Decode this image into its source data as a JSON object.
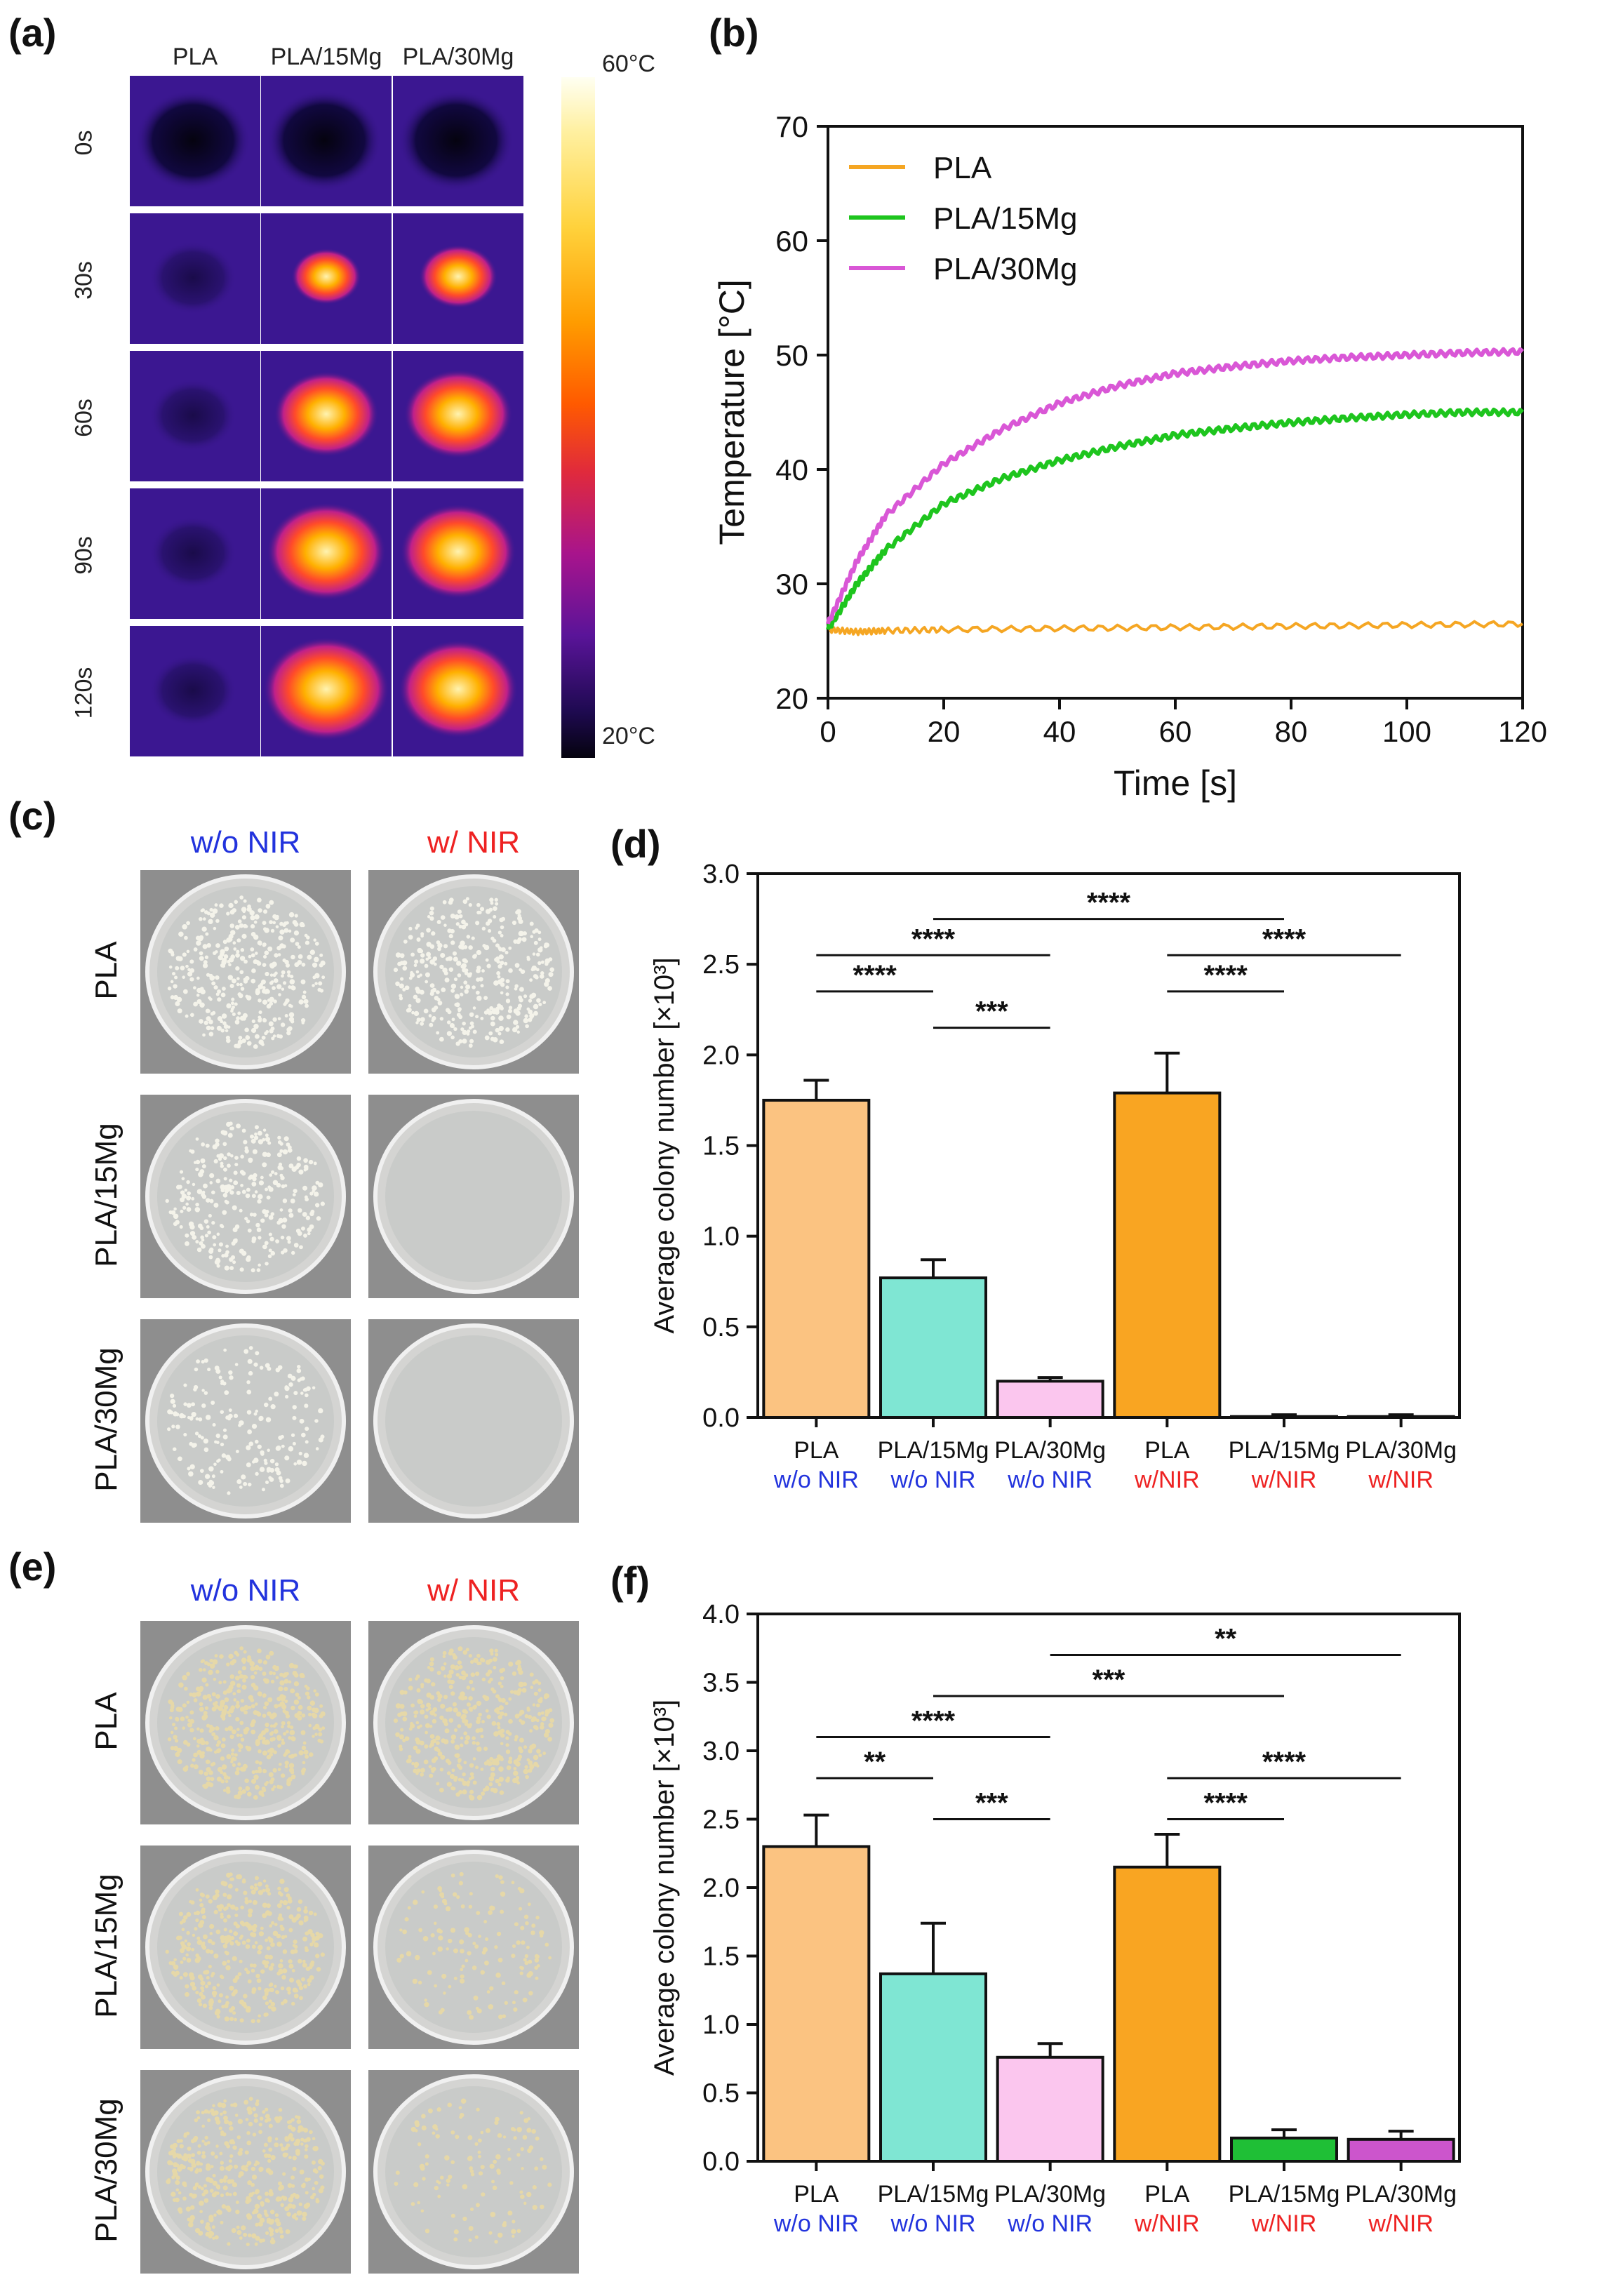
{
  "panels": {
    "a": {
      "label": "(a)"
    },
    "b": {
      "label": "(b)"
    },
    "c": {
      "label": "(c)"
    },
    "d": {
      "label": "(d)"
    },
    "e": {
      "label": "(e)"
    },
    "f": {
      "label": "(f)"
    }
  },
  "thermal": {
    "columns": [
      "PLA",
      "PLA/15Mg",
      "PLA/30Mg"
    ],
    "rows": [
      "0s",
      "30s",
      "60s",
      "90s",
      "120s"
    ],
    "colorbar_max": "60°C",
    "colorbar_min": "20°C"
  },
  "plates_c": {
    "columns": [
      "w/o NIR",
      "w/ NIR"
    ],
    "rows": [
      "PLA",
      "PLA/15Mg",
      "PLA/30Mg"
    ]
  },
  "plates_e": {
    "columns": [
      "w/o NIR",
      "w/ NIR"
    ],
    "rows": [
      "PLA",
      "PLA/15Mg",
      "PLA/30Mg"
    ]
  },
  "colors": {
    "blue_text": "#2233dd",
    "red_text": "#ee2222",
    "pla": "#f5a623",
    "pla15": "#1ec51e",
    "pla30": "#d957d6",
    "bar1": "#fbc381",
    "bar2": "#7fe6d3",
    "bar3": "#fbc6ee",
    "bar4": "#f9a522",
    "bar5": "#1fbf36",
    "bar6": "#cc55cc"
  },
  "chart_data": [
    {
      "id": "b",
      "type": "line",
      "xlabel": "Time [s]",
      "ylabel": "Temperature [°C]",
      "xlim": [
        0,
        120
      ],
      "ylim": [
        20,
        70
      ],
      "xticks": [
        0,
        20,
        40,
        60,
        80,
        100,
        120
      ],
      "yticks": [
        20,
        30,
        40,
        50,
        60,
        70
      ],
      "legend": "top-left",
      "series": [
        {
          "name": "PLA",
          "x": [
            0,
            5,
            10,
            20,
            40,
            60,
            80,
            100,
            120
          ],
          "y": [
            26,
            25.8,
            25.9,
            26,
            26.1,
            26.2,
            26.3,
            26.4,
            26.5
          ]
        },
        {
          "name": "PLA/15Mg",
          "x": [
            0,
            5,
            10,
            20,
            30,
            40,
            50,
            60,
            70,
            80,
            90,
            100,
            110,
            120
          ],
          "y": [
            26,
            30,
            33,
            37,
            39.2,
            40.8,
            42,
            43,
            43.6,
            44.1,
            44.5,
            44.8,
            45,
            45
          ]
        },
        {
          "name": "PLA/30Mg",
          "x": [
            0,
            5,
            10,
            20,
            30,
            40,
            50,
            60,
            70,
            80,
            90,
            100,
            110,
            120
          ],
          "y": [
            26.5,
            32,
            36,
            40.5,
            43.5,
            45.8,
            47.3,
            48.4,
            49,
            49.5,
            49.8,
            50,
            50.2,
            50.3
          ]
        }
      ]
    },
    {
      "id": "d",
      "type": "bar",
      "ylabel": "Average colony number [×10³]",
      "ylim": [
        0,
        3.0
      ],
      "yticks": [
        "0.0",
        "0.5",
        "1.0",
        "1.5",
        "2.0",
        "2.5",
        "3.0"
      ],
      "categories": [
        "PLA",
        "PLA/15Mg",
        "PLA/30Mg",
        "PLA",
        "PLA/15Mg",
        "PLA/30Mg"
      ],
      "subcategories": [
        "w/o NIR",
        "w/o NIR",
        "w/o NIR",
        "w/NIR",
        "w/NIR",
        "w/NIR"
      ],
      "values": [
        1.75,
        0.77,
        0.2,
        1.79,
        0.005,
        0.005
      ],
      "errors": [
        0.11,
        0.1,
        0.02,
        0.22,
        0.01,
        0.01
      ],
      "significance": [
        {
          "from": 0,
          "to": 1,
          "y": 2.35,
          "label": "****"
        },
        {
          "from": 0,
          "to": 2,
          "y": 2.55,
          "label": "****"
        },
        {
          "from": 1,
          "to": 2,
          "y": 2.15,
          "label": "***"
        },
        {
          "from": 1,
          "to": 4,
          "y": 2.75,
          "label": "****"
        },
        {
          "from": 3,
          "to": 4,
          "y": 2.35,
          "label": "****"
        },
        {
          "from": 3,
          "to": 5,
          "y": 2.55,
          "label": "****"
        }
      ]
    },
    {
      "id": "f",
      "type": "bar",
      "ylabel": "Average colony number [×10³]",
      "ylim": [
        0,
        4.0
      ],
      "yticks": [
        "0.0",
        "0.5",
        "1.0",
        "1.5",
        "2.0",
        "2.5",
        "3.0",
        "3.5",
        "4.0"
      ],
      "categories": [
        "PLA",
        "PLA/15Mg",
        "PLA/30Mg",
        "PLA",
        "PLA/15Mg",
        "PLA/30Mg"
      ],
      "subcategories": [
        "w/o NIR",
        "w/o NIR",
        "w/o NIR",
        "w/NIR",
        "w/NIR",
        "w/NIR"
      ],
      "values": [
        2.3,
        1.37,
        0.76,
        2.15,
        0.17,
        0.16
      ],
      "errors": [
        0.23,
        0.37,
        0.1,
        0.24,
        0.06,
        0.06
      ],
      "significance": [
        {
          "from": 0,
          "to": 1,
          "y": 2.8,
          "label": "**"
        },
        {
          "from": 0,
          "to": 2,
          "y": 3.1,
          "label": "****"
        },
        {
          "from": 1,
          "to": 2,
          "y": 2.5,
          "label": "***"
        },
        {
          "from": 1,
          "to": 4,
          "y": 3.4,
          "label": "***"
        },
        {
          "from": 2,
          "to": 5,
          "y": 3.7,
          "label": "**"
        },
        {
          "from": 3,
          "to": 4,
          "y": 2.5,
          "label": "****"
        },
        {
          "from": 3,
          "to": 5,
          "y": 2.8,
          "label": "****"
        }
      ]
    }
  ]
}
